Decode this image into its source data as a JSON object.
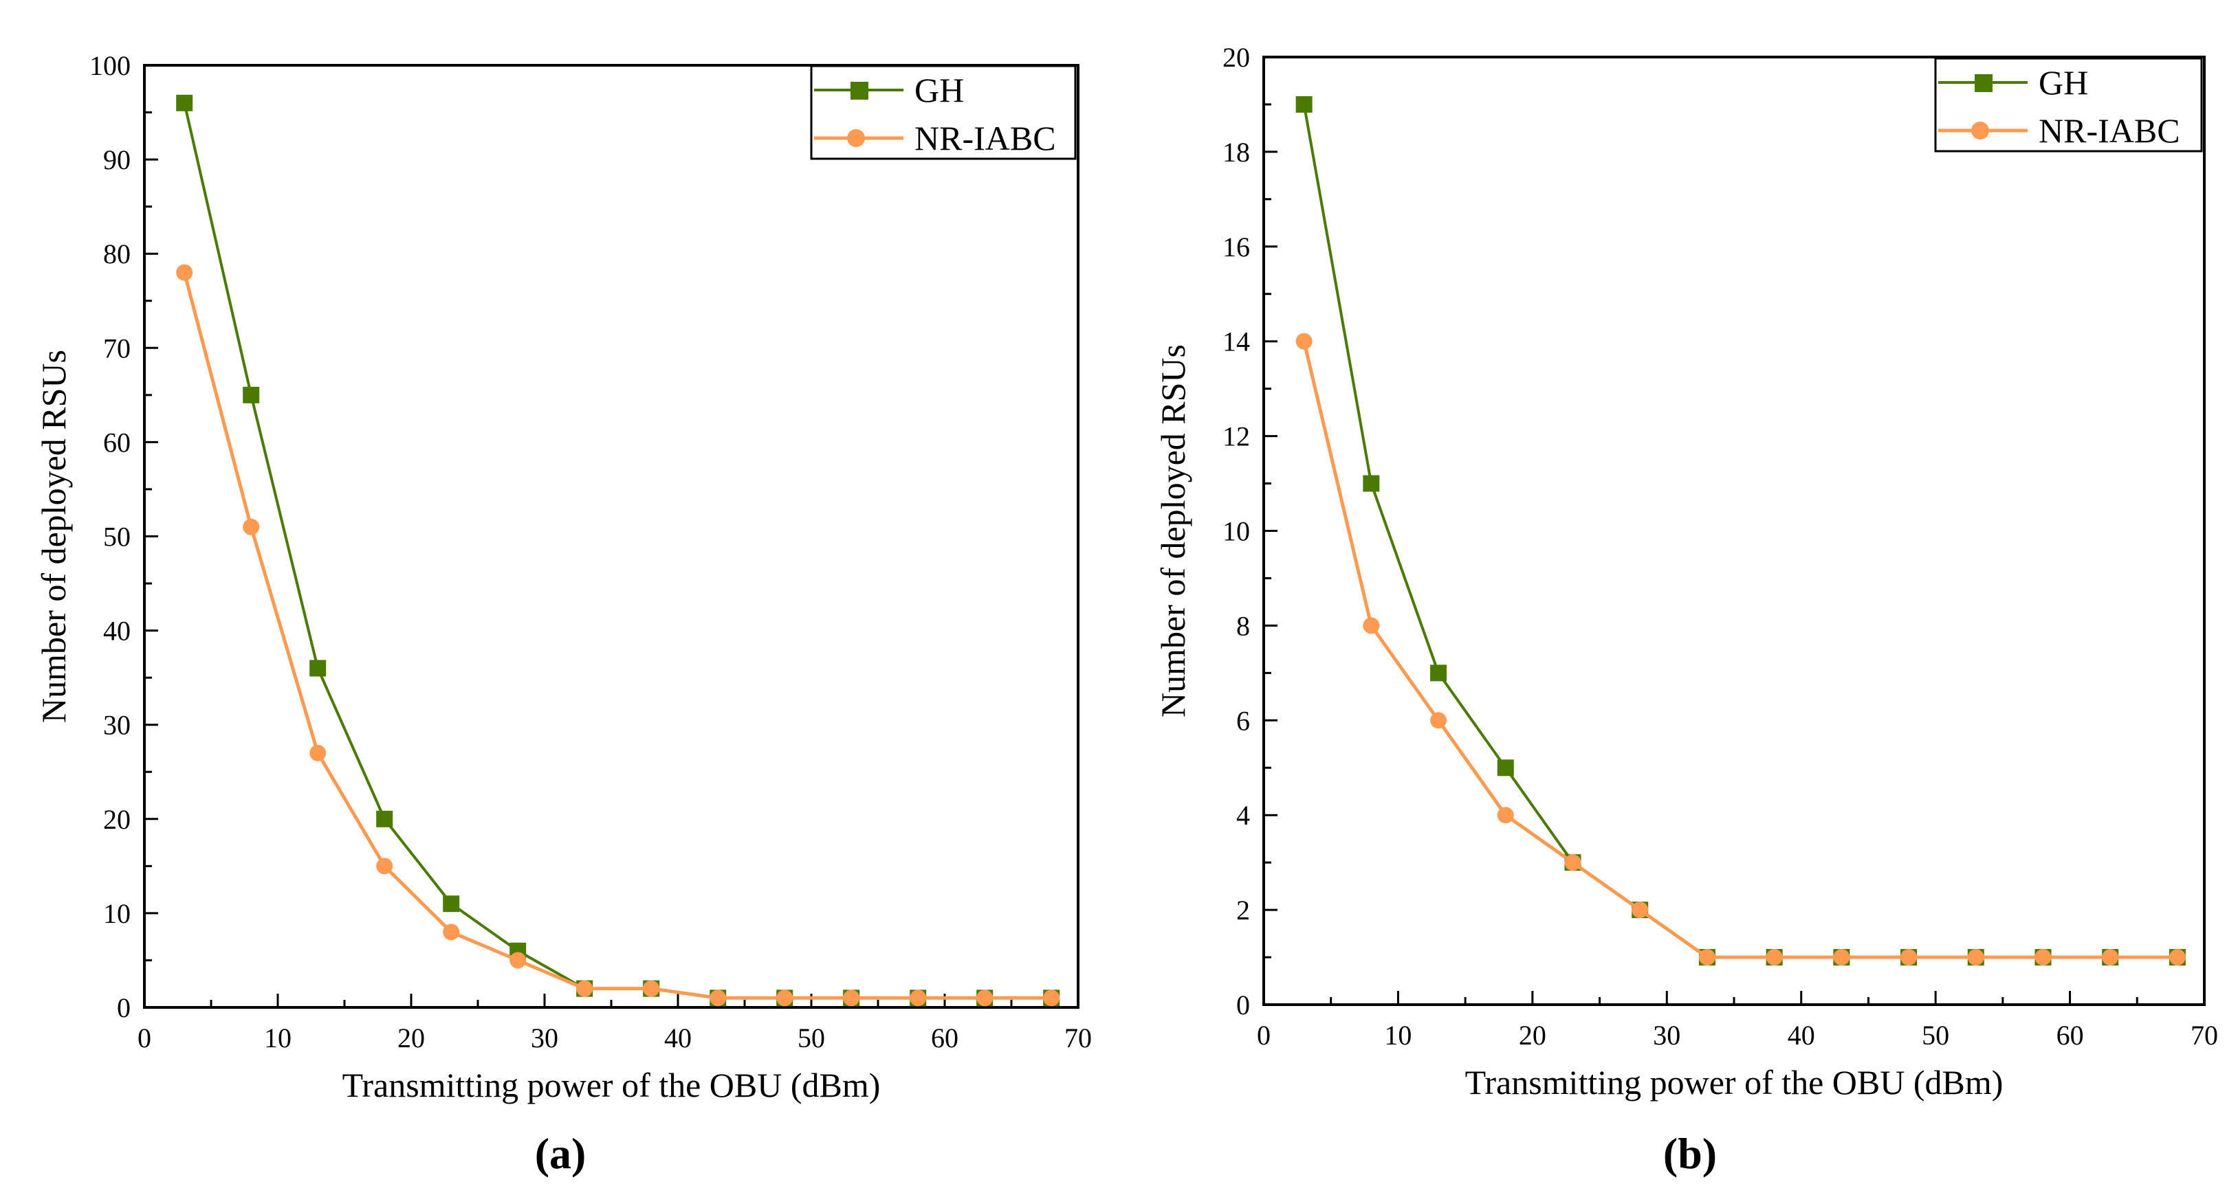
{
  "chart_data": [
    {
      "type": "line",
      "panel_label": "(a)",
      "xlabel": "Transmitting power of the OBU (dBm)",
      "ylabel": "Number of deployed RSUs",
      "xlim": [
        0,
        70
      ],
      "ylim": [
        0,
        100
      ],
      "xticks": [
        0,
        10,
        20,
        30,
        40,
        50,
        60,
        70
      ],
      "yticks": [
        0,
        10,
        20,
        30,
        40,
        50,
        60,
        70,
        80,
        90,
        100
      ],
      "grid": false,
      "legend_position": "top-right",
      "x": [
        3,
        8,
        13,
        18,
        23,
        28,
        33,
        38,
        43,
        48,
        53,
        58,
        63,
        68
      ],
      "series": [
        {
          "name": "GH",
          "marker": "square",
          "color": "#4a7a00",
          "values": [
            96,
            65,
            36,
            20,
            11,
            6,
            2,
            2,
            1,
            1,
            1,
            1,
            1,
            1
          ]
        },
        {
          "name": "NR-IABC",
          "marker": "circle",
          "color": "#ff9a50",
          "values": [
            78,
            51,
            27,
            15,
            8,
            5,
            2,
            2,
            1,
            1,
            1,
            1,
            1,
            1
          ]
        }
      ]
    },
    {
      "type": "line",
      "panel_label": "(b)",
      "xlabel": "Transmitting power of the OBU (dBm)",
      "ylabel": "Number of deployed RSUs",
      "xlim": [
        0,
        70
      ],
      "ylim": [
        0,
        20
      ],
      "xticks": [
        0,
        10,
        20,
        30,
        40,
        50,
        60,
        70
      ],
      "yticks": [
        0,
        2,
        4,
        6,
        8,
        10,
        12,
        14,
        16,
        18,
        20
      ],
      "grid": false,
      "legend_position": "top-right",
      "x": [
        3,
        8,
        13,
        18,
        23,
        28,
        33,
        38,
        43,
        48,
        53,
        58,
        63,
        68
      ],
      "series": [
        {
          "name": "GH",
          "marker": "square",
          "color": "#4a7a00",
          "values": [
            19,
            11,
            7,
            5,
            3,
            2,
            1,
            1,
            1,
            1,
            1,
            1,
            1,
            1
          ]
        },
        {
          "name": "NR-IABC",
          "marker": "circle",
          "color": "#ff9a50",
          "values": [
            14,
            8,
            6,
            4,
            3,
            2,
            1,
            1,
            1,
            1,
            1,
            1,
            1,
            1
          ]
        }
      ]
    }
  ]
}
